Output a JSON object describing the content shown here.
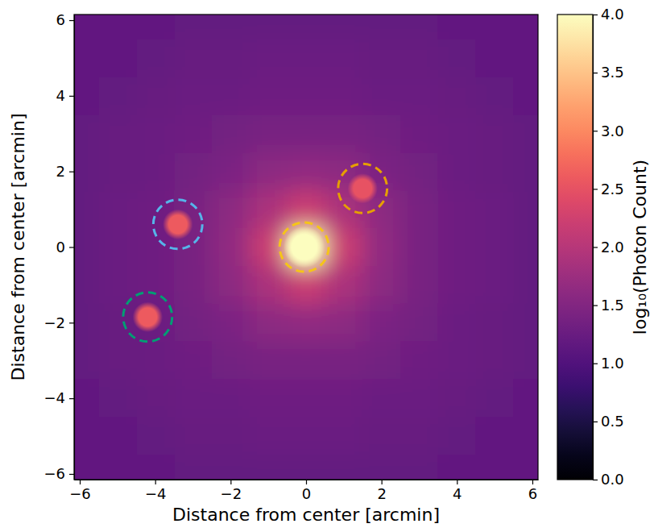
{
  "chart_data": {
    "type": "heatmap",
    "xlabel": "Distance from center [arcmin]",
    "ylabel": "Distance from center [arcmin]",
    "xlim": [
      -6.15,
      6.15
    ],
    "ylim": [
      -6.15,
      6.15
    ],
    "xticks": [
      {
        "value": -6,
        "label": "−6"
      },
      {
        "value": -4,
        "label": "−4"
      },
      {
        "value": -2,
        "label": "−2"
      },
      0,
      2,
      4,
      6
    ],
    "yticks": [
      {
        "value": -6,
        "label": "−6"
      },
      {
        "value": -4,
        "label": "−4"
      },
      {
        "value": -2,
        "label": "−2"
      },
      0,
      2,
      4,
      6
    ],
    "colorbar": {
      "label": "log₁₀(Photon Count)",
      "range": [
        0,
        4
      ],
      "ticks": [
        {
          "value": 0,
          "label": "0.0"
        },
        {
          "value": 0.5,
          "label": "0.5"
        },
        {
          "value": 1,
          "label": "1.0"
        },
        {
          "value": 1.5,
          "label": "1.5"
        },
        {
          "value": 2,
          "label": "2.0"
        },
        {
          "value": 2.5,
          "label": "2.5"
        },
        {
          "value": 3,
          "label": "3.0"
        },
        {
          "value": 3.5,
          "label": "3.5"
        },
        {
          "value": 4,
          "label": "4.0"
        }
      ]
    },
    "cells": {
      "x": [
        -6,
        -5,
        -4,
        -3,
        -2,
        -1,
        0,
        1,
        2,
        3,
        4,
        5,
        6
      ],
      "y": [
        6,
        5,
        4,
        3,
        2,
        1,
        0,
        -1,
        -2,
        -3,
        -4,
        -5,
        -6
      ],
      "values": [
        [
          1.18,
          1.18,
          1.18,
          1.2,
          1.2,
          1.2,
          1.2,
          1.2,
          1.2,
          1.2,
          1.18,
          1.18,
          1.18
        ],
        [
          1.18,
          1.18,
          1.2,
          1.22,
          1.22,
          1.25,
          1.25,
          1.25,
          1.22,
          1.22,
          1.2,
          1.18,
          1.18
        ],
        [
          1.18,
          1.2,
          1.22,
          1.25,
          1.28,
          1.3,
          1.3,
          1.3,
          1.28,
          1.25,
          1.22,
          1.2,
          1.18
        ],
        [
          1.2,
          1.22,
          1.25,
          1.3,
          1.35,
          1.4,
          1.4,
          1.4,
          1.35,
          1.3,
          1.25,
          1.22,
          1.2
        ],
        [
          1.2,
          1.22,
          1.28,
          1.35,
          1.45,
          1.6,
          1.65,
          1.6,
          1.45,
          1.35,
          1.28,
          1.22,
          1.2
        ],
        [
          1.2,
          1.25,
          1.3,
          1.4,
          1.6,
          1.9,
          2.2,
          1.9,
          1.6,
          1.4,
          1.3,
          1.25,
          1.2
        ],
        [
          1.2,
          1.25,
          1.3,
          1.4,
          1.65,
          2.2,
          4.0,
          2.2,
          1.65,
          1.4,
          1.3,
          1.25,
          1.2
        ],
        [
          1.2,
          1.25,
          1.3,
          1.4,
          1.6,
          1.9,
          2.2,
          1.9,
          1.6,
          1.4,
          1.3,
          1.25,
          1.2
        ],
        [
          1.2,
          1.22,
          1.28,
          1.35,
          1.45,
          1.6,
          1.65,
          1.6,
          1.45,
          1.35,
          1.28,
          1.22,
          1.2
        ],
        [
          1.2,
          1.22,
          1.25,
          1.3,
          1.35,
          1.4,
          1.4,
          1.4,
          1.35,
          1.3,
          1.25,
          1.22,
          1.2
        ],
        [
          1.18,
          1.2,
          1.22,
          1.25,
          1.28,
          1.3,
          1.3,
          1.3,
          1.28,
          1.25,
          1.22,
          1.2,
          1.18
        ],
        [
          1.18,
          1.18,
          1.2,
          1.22,
          1.22,
          1.25,
          1.25,
          1.25,
          1.22,
          1.22,
          1.2,
          1.18,
          1.18
        ],
        [
          1.18,
          1.18,
          1.18,
          1.2,
          1.2,
          1.2,
          1.2,
          1.2,
          1.2,
          1.2,
          1.18,
          1.18,
          1.18
        ]
      ]
    },
    "sources": [
      {
        "x": -0.05,
        "y": 0.0,
        "value": 4.0,
        "radius": 0.55,
        "aperture": 0.65,
        "color": "#f5c518"
      },
      {
        "x": 1.5,
        "y": 1.55,
        "value": 2.5,
        "radius": 0.4,
        "aperture": 0.65,
        "color": "#e69f00"
      },
      {
        "x": -3.4,
        "y": 0.6,
        "value": 2.6,
        "radius": 0.4,
        "aperture": 0.65,
        "color": "#56b4e9"
      },
      {
        "x": -4.2,
        "y": -1.85,
        "value": 2.6,
        "radius": 0.4,
        "aperture": 0.65,
        "color": "#009e73"
      }
    ]
  }
}
